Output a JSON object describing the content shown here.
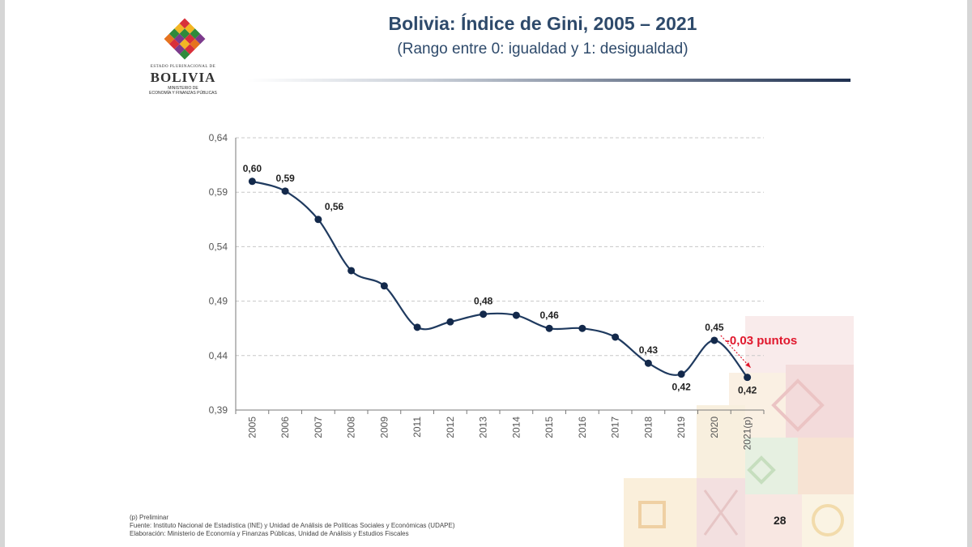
{
  "logo": {
    "state_line": "ESTADO PLURINACIONAL DE",
    "name": "BOLIVIA",
    "ministry_line1": "MINISTERIO DE",
    "ministry_line2": "ECONOMÍA Y FINANZAS PÚBLICAS"
  },
  "title": "Bolivia: Índice de Gini, 2005 – 2021",
  "subtitle": "(Rango entre 0: igualdad y 1: desigualdad)",
  "annotation": "-0,03 puntos",
  "colors": {
    "line": "#1f3a5f",
    "marker": "#13294b",
    "title": "#2e4a6b",
    "annotation": "#e0182d",
    "grid": "#c8c8c8"
  },
  "chart_data": {
    "type": "line",
    "title": "Bolivia: Índice de Gini, 2005 – 2021",
    "xlabel": "",
    "ylabel": "",
    "categories": [
      "2005",
      "2006",
      "2007",
      "2008",
      "2009",
      "2011",
      "2012",
      "2013",
      "2014",
      "2015",
      "2016",
      "2017",
      "2018",
      "2019",
      "2020",
      "2021(p)"
    ],
    "series": [
      {
        "values": [
          0.6,
          0.591,
          0.565,
          0.518,
          0.504,
          0.466,
          0.471,
          0.478,
          0.477,
          0.465,
          0.465,
          0.457,
          0.433,
          0.423,
          0.454,
          0.42
        ],
        "data_labels": [
          "0,60",
          "0,59",
          "0,56",
          "",
          "",
          "",
          "",
          "0,48",
          "",
          "0,46",
          "",
          "",
          "0,43",
          "0,42",
          "0,45",
          "0,42"
        ]
      }
    ],
    "yticks": [
      0.39,
      0.44,
      0.49,
      0.54,
      0.59,
      0.64
    ],
    "ytick_labels": [
      "0,39",
      "0,44",
      "0,49",
      "0,54",
      "0,59",
      "0,64"
    ],
    "ylim": [
      0.39,
      0.64
    ],
    "grid": "horizontal-dashed",
    "legend": "none",
    "marker": "circle",
    "smooth": true
  },
  "footnotes": {
    "line1": "(p) Preliminar",
    "line2": "Fuente: Instituto Nacional de Estadística (INE) y Unidad de Análisis de Políticas Sociales y Económicas (UDAPE)",
    "line3": "Elaboración: Ministerio de Economía y Finanzas Públicas, Unidad de Análisis y Estudios Fiscales"
  },
  "page_number": "28"
}
